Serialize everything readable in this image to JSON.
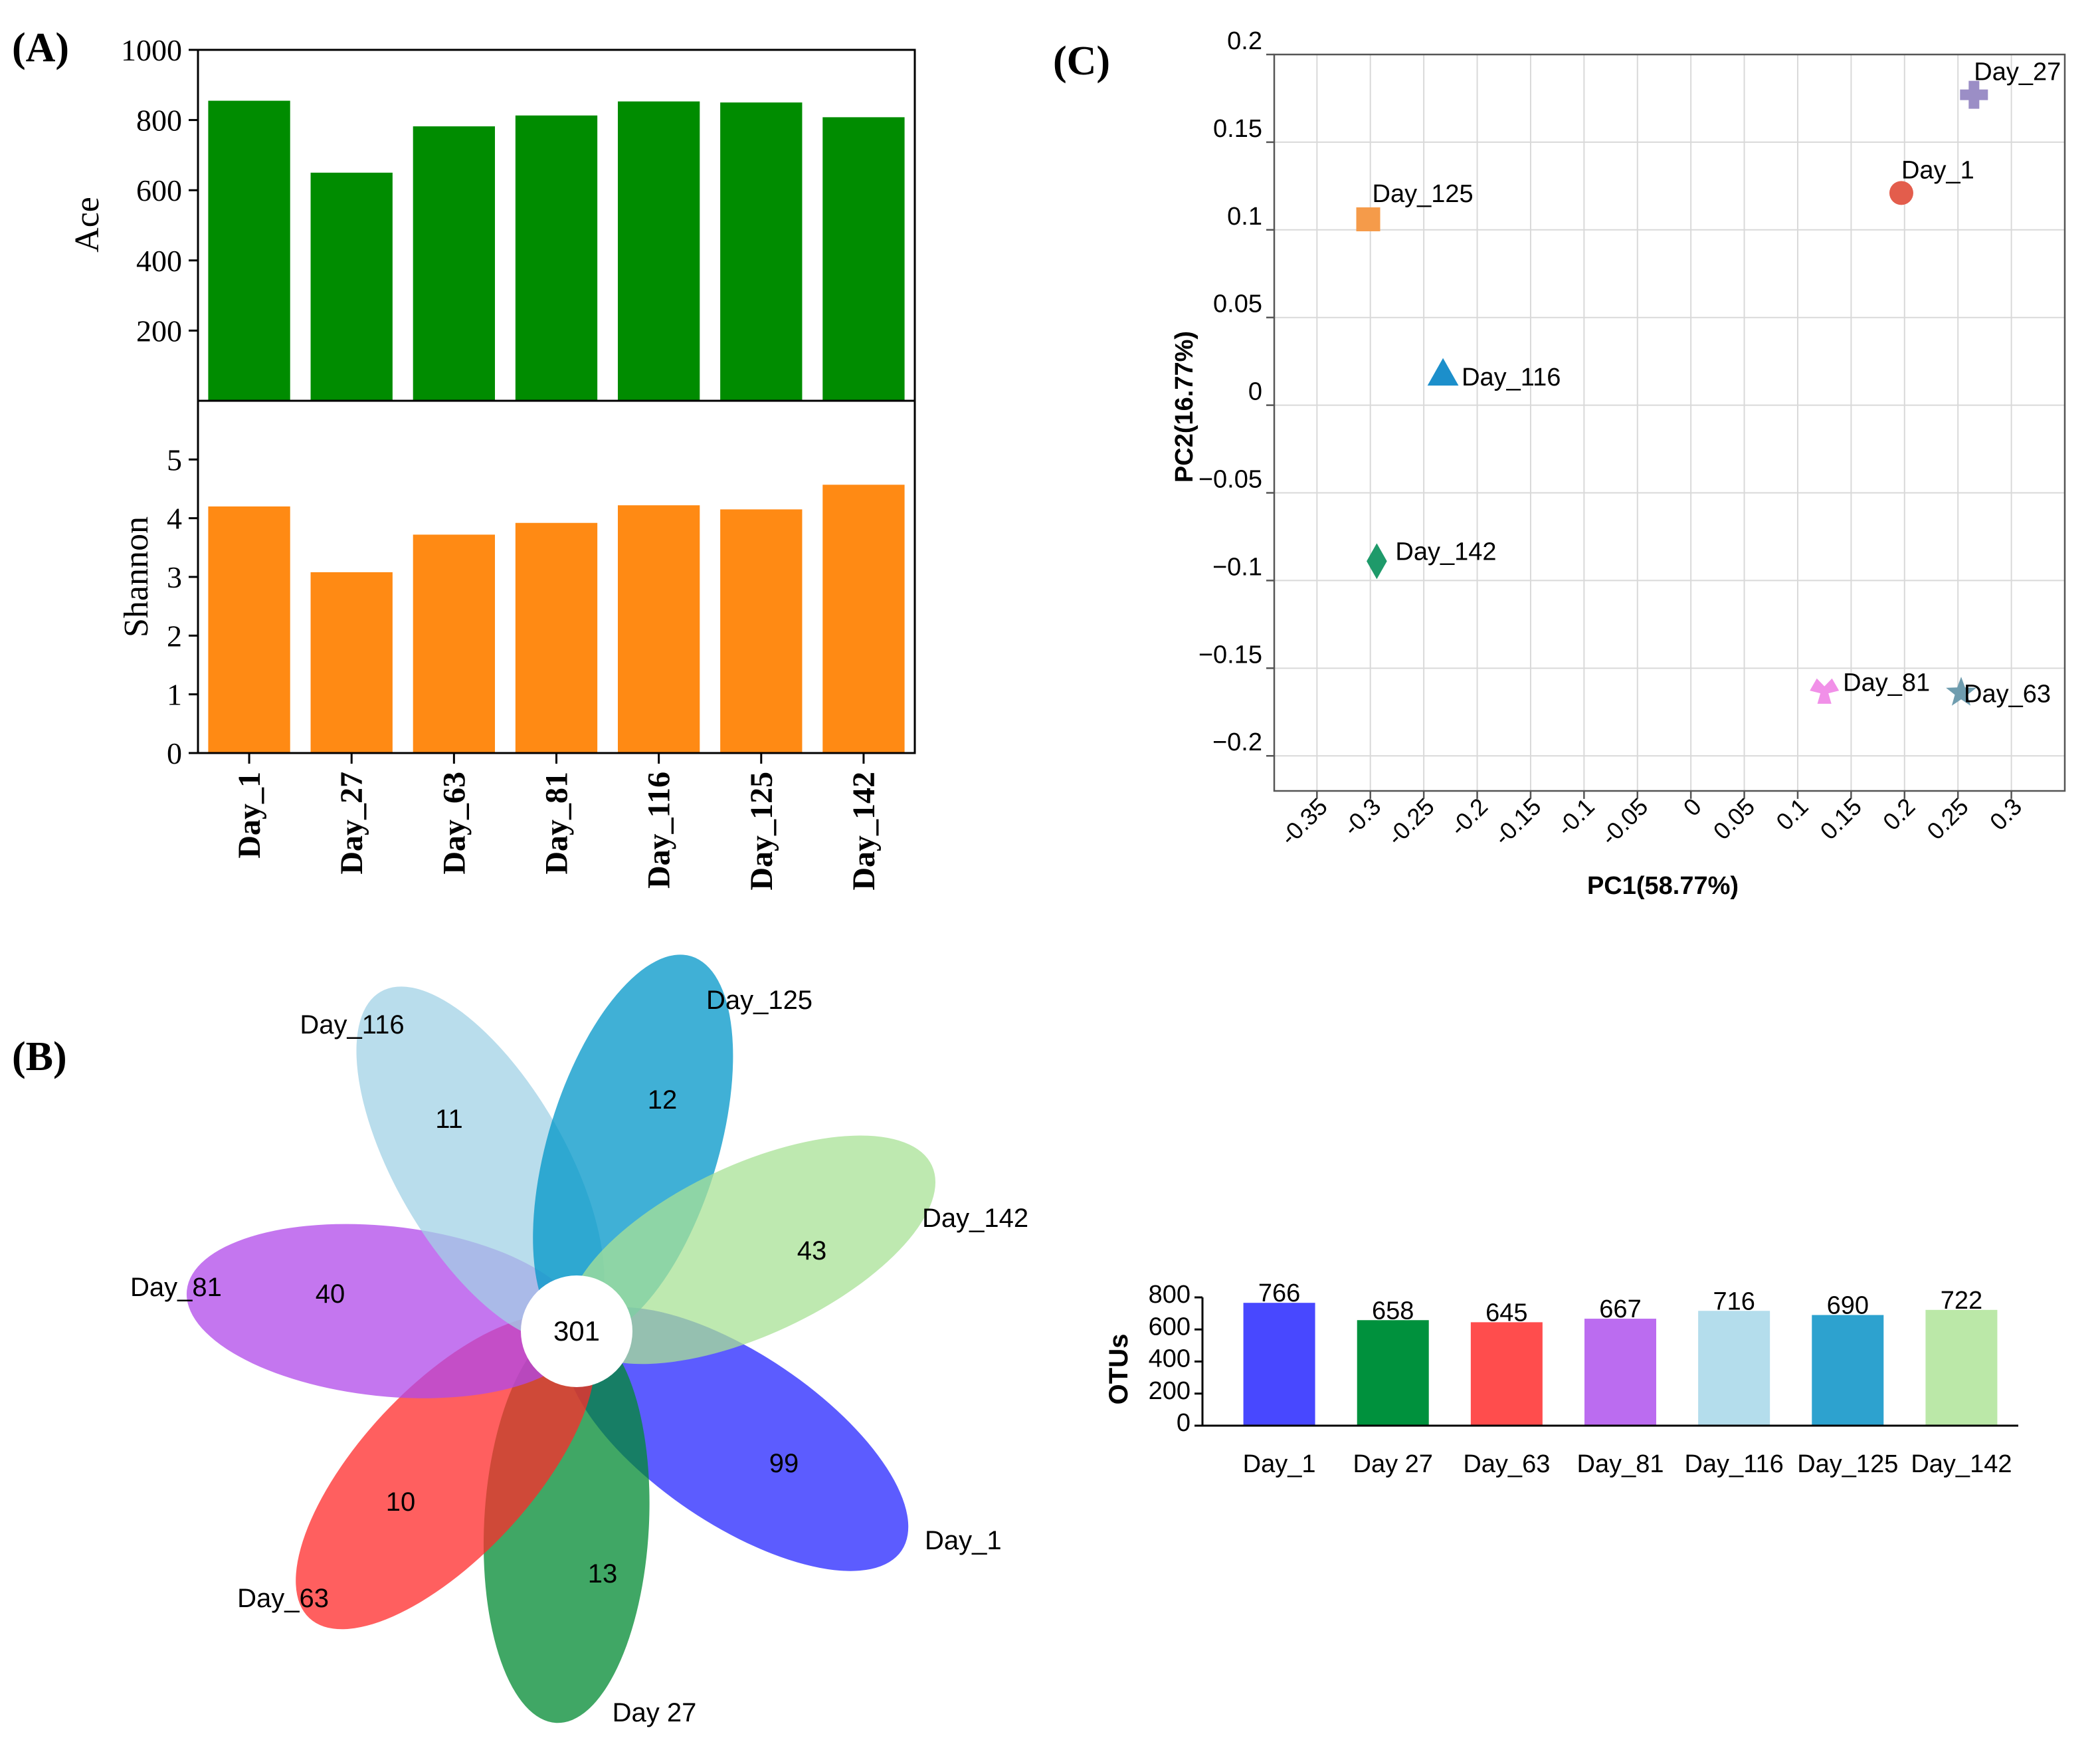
{
  "panels": {
    "a_label": "(A)",
    "b_label": "(B)",
    "c_label": "(C)"
  },
  "chart_data": [
    {
      "id": "ace",
      "type": "bar",
      "ylabel": "Ace",
      "categories": [
        "Day_1",
        "Day_27",
        "Day_63",
        "Day_81",
        "Day_116",
        "Day_125",
        "Day_142"
      ],
      "values": [
        855,
        650,
        782,
        813,
        853,
        850,
        808
      ],
      "ylim": [
        0,
        1000
      ],
      "yticks": [
        "200",
        "400",
        "600",
        "800",
        "1000"
      ],
      "ytick_values": [
        200,
        400,
        600,
        800,
        1000
      ],
      "color": "#008C00"
    },
    {
      "id": "shannon",
      "type": "bar",
      "ylabel": "Shannon",
      "categories": [
        "Day_1",
        "Day_27",
        "Day_63",
        "Day_81",
        "Day_116",
        "Day_125",
        "Day_142"
      ],
      "values": [
        4.2,
        3.08,
        3.72,
        3.92,
        4.22,
        4.15,
        4.57
      ],
      "ylim": [
        0,
        6
      ],
      "yticks": [
        "0",
        "1",
        "2",
        "3",
        "4",
        "5"
      ],
      "ytick_values": [
        0,
        1,
        2,
        3,
        4,
        5
      ],
      "color": "#FF8A14"
    },
    {
      "id": "pcoa",
      "type": "scatter",
      "xlabel": "PC1(58.77%)",
      "ylabel": "PC2(16.77%)",
      "xlim": [
        -0.39,
        0.35
      ],
      "ylim": [
        -0.22,
        0.2
      ],
      "xticks": [
        "-0.35",
        "-0.3",
        "-0.25",
        "-0.2",
        "-0.15",
        "-0.1",
        "-0.05",
        "0",
        "0.05",
        "0.1",
        "0.15",
        "0.2",
        "0.25",
        "0.3"
      ],
      "xtick_values": [
        -0.35,
        -0.3,
        -0.25,
        -0.2,
        -0.15,
        -0.1,
        -0.05,
        0,
        0.05,
        0.1,
        0.15,
        0.2,
        0.25,
        0.3
      ],
      "yticks": [
        "0.2",
        "0.15",
        "0.1",
        "0.05",
        "0",
        "−0.05",
        "−0.1",
        "−0.15",
        "−0.2"
      ],
      "ytick_values": [
        0.2,
        0.15,
        0.1,
        0.05,
        0,
        -0.05,
        -0.1,
        -0.15,
        -0.2
      ],
      "points": [
        {
          "label": "Day_27",
          "x": 0.265,
          "y": 0.177,
          "marker": "plus",
          "color": "#9B8EC6"
        },
        {
          "label": "Day_1",
          "x": 0.197,
          "y": 0.121,
          "marker": "circle",
          "color": "#E35D4C"
        },
        {
          "label": "Day_125",
          "x": -0.302,
          "y": 0.106,
          "marker": "square",
          "color": "#F59B4A"
        },
        {
          "label": "Day_116",
          "x": -0.232,
          "y": 0.018,
          "marker": "triangle",
          "color": "#1C8FCB"
        },
        {
          "label": "Day_142",
          "x": -0.294,
          "y": -0.089,
          "marker": "diamond",
          "color": "#1E9A6A"
        },
        {
          "label": "Day_81",
          "x": 0.125,
          "y": -0.163,
          "marker": "tri",
          "color": "#F190E8"
        },
        {
          "label": "Day_63",
          "x": 0.253,
          "y": -0.164,
          "marker": "star",
          "color": "#6F9DAF"
        }
      ]
    },
    {
      "id": "venn",
      "type": "flower",
      "center_value": "301",
      "petals": [
        {
          "label": "Day_1",
          "value": "99",
          "color": "#2626FF"
        },
        {
          "label": "Day 27",
          "value": "13",
          "color": "#008A32"
        },
        {
          "label": "Day_63",
          "value": "10",
          "color": "#FF2A2A"
        },
        {
          "label": "Day_81",
          "value": "40",
          "color": "#B048EA"
        },
        {
          "label": "Day_116",
          "value": "11",
          "color": "#A2D2E6"
        },
        {
          "label": "Day_125",
          "value": "12",
          "color": "#0095C8"
        },
        {
          "label": "Day_142",
          "value": "43",
          "color": "#A8E296"
        }
      ]
    },
    {
      "id": "otus",
      "type": "bar",
      "ylabel": "OTUs",
      "categories": [
        "Day_1",
        "Day 27",
        "Day_63",
        "Day_81",
        "Day_116",
        "Day_125",
        "Day_142"
      ],
      "values": [
        766,
        658,
        645,
        667,
        716,
        690,
        722
      ],
      "value_labels": [
        "766",
        "658",
        "645",
        "667",
        "716",
        "690",
        "722"
      ],
      "colors": [
        "#4848FF",
        "#00913D",
        "#FF4D4D",
        "#BB6CF0",
        "#B4DDEC",
        "#2DA2CF",
        "#BBE8A8"
      ],
      "ylim": [
        0,
        800
      ],
      "yticks": [
        "0",
        "200",
        "400",
        "600",
        "800"
      ],
      "ytick_values": [
        0,
        200,
        400,
        600,
        800
      ]
    }
  ]
}
